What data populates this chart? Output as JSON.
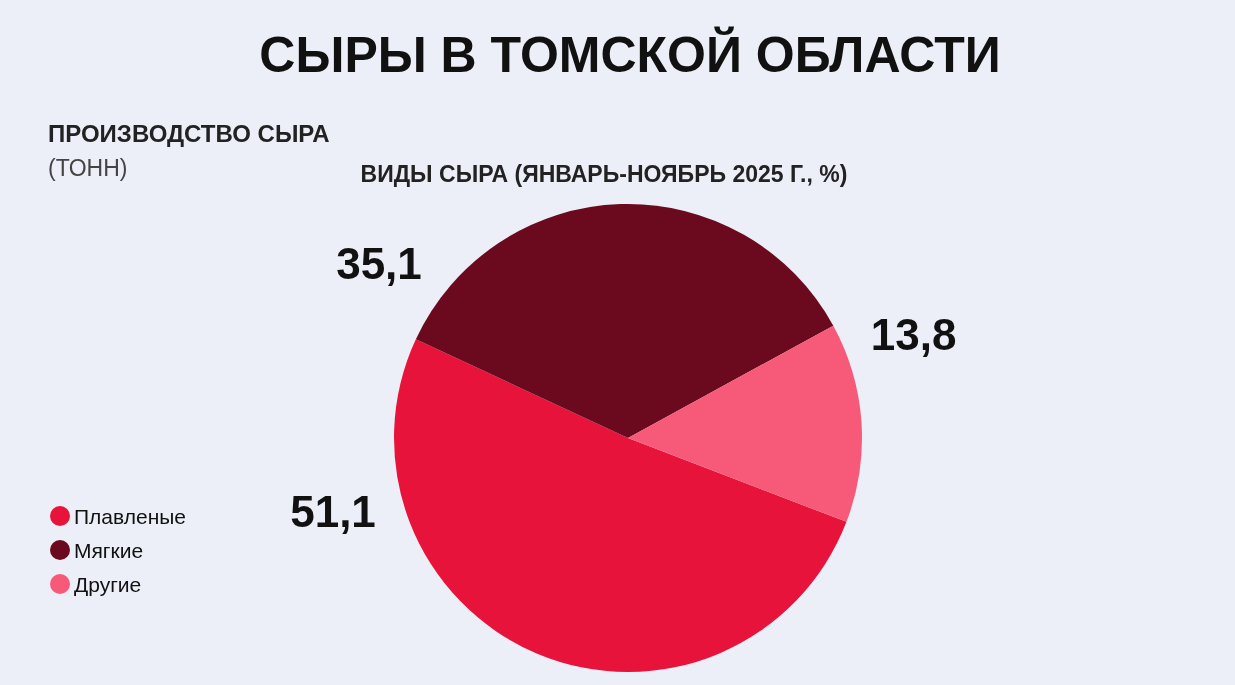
{
  "chart_data": {
    "type": "pie",
    "title": "СЫРЫ В ТОМСКОЙ ОБЛАСТИ",
    "subtitle": "ВИДЫ СЫРА (ЯНВАРЬ-НОЯБРЬ 2025 Г., %)",
    "annotations": [
      "ПРОИЗВОДСТВО СЫРА",
      "(ТОНН)"
    ],
    "categories": [
      "Плавленые",
      "Мягкие",
      "Другие"
    ],
    "values": [
      51.1,
      35.1,
      13.8
    ],
    "value_labels": [
      "51,1",
      "35,1",
      "13,8"
    ],
    "colors": [
      "#e8133a",
      "#6b0a1e",
      "#f65a78"
    ],
    "legend": "bottom left"
  }
}
